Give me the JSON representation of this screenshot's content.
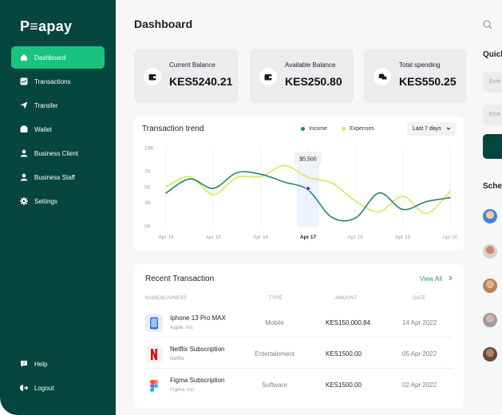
{
  "brand": {
    "name": "P≡apay"
  },
  "sidebar": {
    "items": [
      {
        "label": "Dashboard",
        "icon": "home-icon",
        "active": true
      },
      {
        "label": "Transactions",
        "icon": "chart-icon",
        "active": false
      },
      {
        "label": "Transfer",
        "icon": "send-icon",
        "active": false
      },
      {
        "label": "Wallet",
        "icon": "wallet-icon",
        "active": false
      },
      {
        "label": "Business Client",
        "icon": "user-icon",
        "active": false
      },
      {
        "label": "Business Staff",
        "icon": "user-icon",
        "active": false
      },
      {
        "label": "Settings",
        "icon": "gear-icon",
        "active": false
      }
    ],
    "bottom": [
      {
        "label": "Help",
        "icon": "help-icon"
      },
      {
        "label": "Logout",
        "icon": "logout-icon"
      }
    ]
  },
  "header": {
    "title": "Dashboard"
  },
  "cards": [
    {
      "label": "Current Balance",
      "value": "KES5240.21",
      "icon": "wallet-icon"
    },
    {
      "label": "Available Balance",
      "value": "KES250.80",
      "icon": "wallet-icon"
    },
    {
      "label": "Total spending",
      "value": "KES550.25",
      "icon": "coins-icon"
    }
  ],
  "trend": {
    "title": "Transaction trend",
    "legend": [
      {
        "name": "Income",
        "color": "#1b8a66"
      },
      {
        "name": "Expenses",
        "color": "#d6e85a"
      }
    ],
    "range": "Last 7 days",
    "tooltip": "$5,500"
  },
  "chart_data": {
    "type": "line",
    "x_ticks": [
      "Apr 14",
      "Apr 15",
      "Apr 16",
      "Apr 17",
      "Apr 18",
      "Apr 19",
      "Apr 20"
    ],
    "y_ticks": [
      "10K",
      "7K",
      "5K",
      "3K",
      "0K"
    ],
    "highlight": "Apr 17",
    "x": [
      14,
      14.5,
      15,
      15.5,
      16,
      16.5,
      17,
      17.5,
      18,
      18.5,
      19,
      19.5,
      20
    ],
    "series": [
      {
        "name": "Income",
        "color": "#1b8a66",
        "values": [
          4.2,
          6.0,
          4.8,
          6.8,
          6.6,
          5.6,
          4.6,
          1.1,
          1.0,
          4.2,
          2.1,
          3.1,
          3.6
        ]
      },
      {
        "name": "Expenses",
        "color": "#d6e85a",
        "values": [
          5.0,
          6.3,
          4.0,
          6.2,
          6.3,
          7.7,
          6.2,
          5.5,
          3.2,
          1.8,
          3.8,
          1.6,
          4.4
        ]
      }
    ],
    "ylim": [
      0,
      10
    ]
  },
  "transactions": {
    "title": "Recent Transaction",
    "view_all": "View All",
    "headers": {
      "name": "NAME/BUSINESS",
      "type": "TYPE",
      "amount": "AMOUNT",
      "date": "DATE"
    },
    "rows": [
      {
        "name": "Iphone 13 Pro MAX",
        "business": "Apple. Inc",
        "type": "Mobile",
        "amount": "KES150,000.84",
        "date": "14 Apr 2022",
        "icon": "phone-icon"
      },
      {
        "name": "Netflix Subscription",
        "business": "Netflix",
        "type": "Entertainment",
        "amount": "KES1500.00",
        "date": "05 Apr 2022",
        "icon": "netflix-icon"
      },
      {
        "name": "Figma Subscription",
        "business": "Figma. Inc",
        "type": "Software",
        "amount": "KES1500.00",
        "date": "02 Apr 2022",
        "icon": "figma-icon"
      }
    ]
  },
  "quick": {
    "title": "Quick",
    "input1": "Ente",
    "input2": "Ente"
  },
  "schedule": {
    "title": "Sche"
  },
  "colors": {
    "sidebar": "#05463f",
    "accent": "#19c27f",
    "income": "#1b8a66",
    "expenses": "#d6e85a"
  }
}
